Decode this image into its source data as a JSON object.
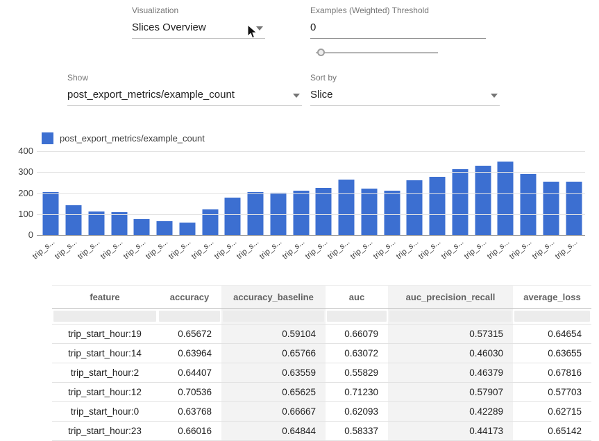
{
  "controls": {
    "visualization": {
      "label": "Visualization",
      "value": "Slices Overview"
    },
    "threshold": {
      "label": "Examples (Weighted) Threshold",
      "value": "0",
      "slider_value": 0
    },
    "show": {
      "label": "Show",
      "value": "post_export_metrics/example_count"
    },
    "sort_by": {
      "label": "Sort by",
      "value": "Slice"
    }
  },
  "chart_data": {
    "type": "bar",
    "legend": "post_export_metrics/example_count",
    "bar_color": "#3c6fd1",
    "ylim": [
      0,
      400
    ],
    "yticks": [
      0,
      100,
      200,
      300,
      400
    ],
    "grid": true,
    "legend_position": "top-left",
    "categories": [
      "trip_s...",
      "trip_s...",
      "trip_s...",
      "trip_s...",
      "trip_s...",
      "trip_s...",
      "trip_s...",
      "trip_s...",
      "trip_s...",
      "trip_s...",
      "trip_s...",
      "trip_s...",
      "trip_s...",
      "trip_s...",
      "trip_s...",
      "trip_s...",
      "trip_s...",
      "trip_s...",
      "trip_s...",
      "trip_s...",
      "trip_s...",
      "trip_s...",
      "trip_s...",
      "trip_s..."
    ],
    "values": [
      205,
      143,
      113,
      110,
      75,
      65,
      60,
      122,
      178,
      205,
      202,
      213,
      224,
      266,
      221,
      211,
      262,
      277,
      313,
      332,
      352,
      291,
      253,
      256
    ]
  },
  "table": {
    "columns": [
      "feature",
      "accuracy",
      "accuracy_baseline",
      "auc",
      "auc_precision_recall",
      "average_loss"
    ],
    "striped_column_indexes": [
      2,
      4
    ],
    "rows": [
      [
        "trip_start_hour:19",
        "0.65672",
        "0.59104",
        "0.66079",
        "0.57315",
        "0.64654"
      ],
      [
        "trip_start_hour:14",
        "0.63964",
        "0.65766",
        "0.63072",
        "0.46030",
        "0.63655"
      ],
      [
        "trip_start_hour:2",
        "0.64407",
        "0.63559",
        "0.55829",
        "0.46379",
        "0.67816"
      ],
      [
        "trip_start_hour:12",
        "0.70536",
        "0.65625",
        "0.71230",
        "0.57907",
        "0.57703"
      ],
      [
        "trip_start_hour:0",
        "0.63768",
        "0.66667",
        "0.62093",
        "0.42289",
        "0.62715"
      ],
      [
        "trip_start_hour:23",
        "0.66016",
        "0.64844",
        "0.58337",
        "0.44173",
        "0.65142"
      ]
    ]
  }
}
